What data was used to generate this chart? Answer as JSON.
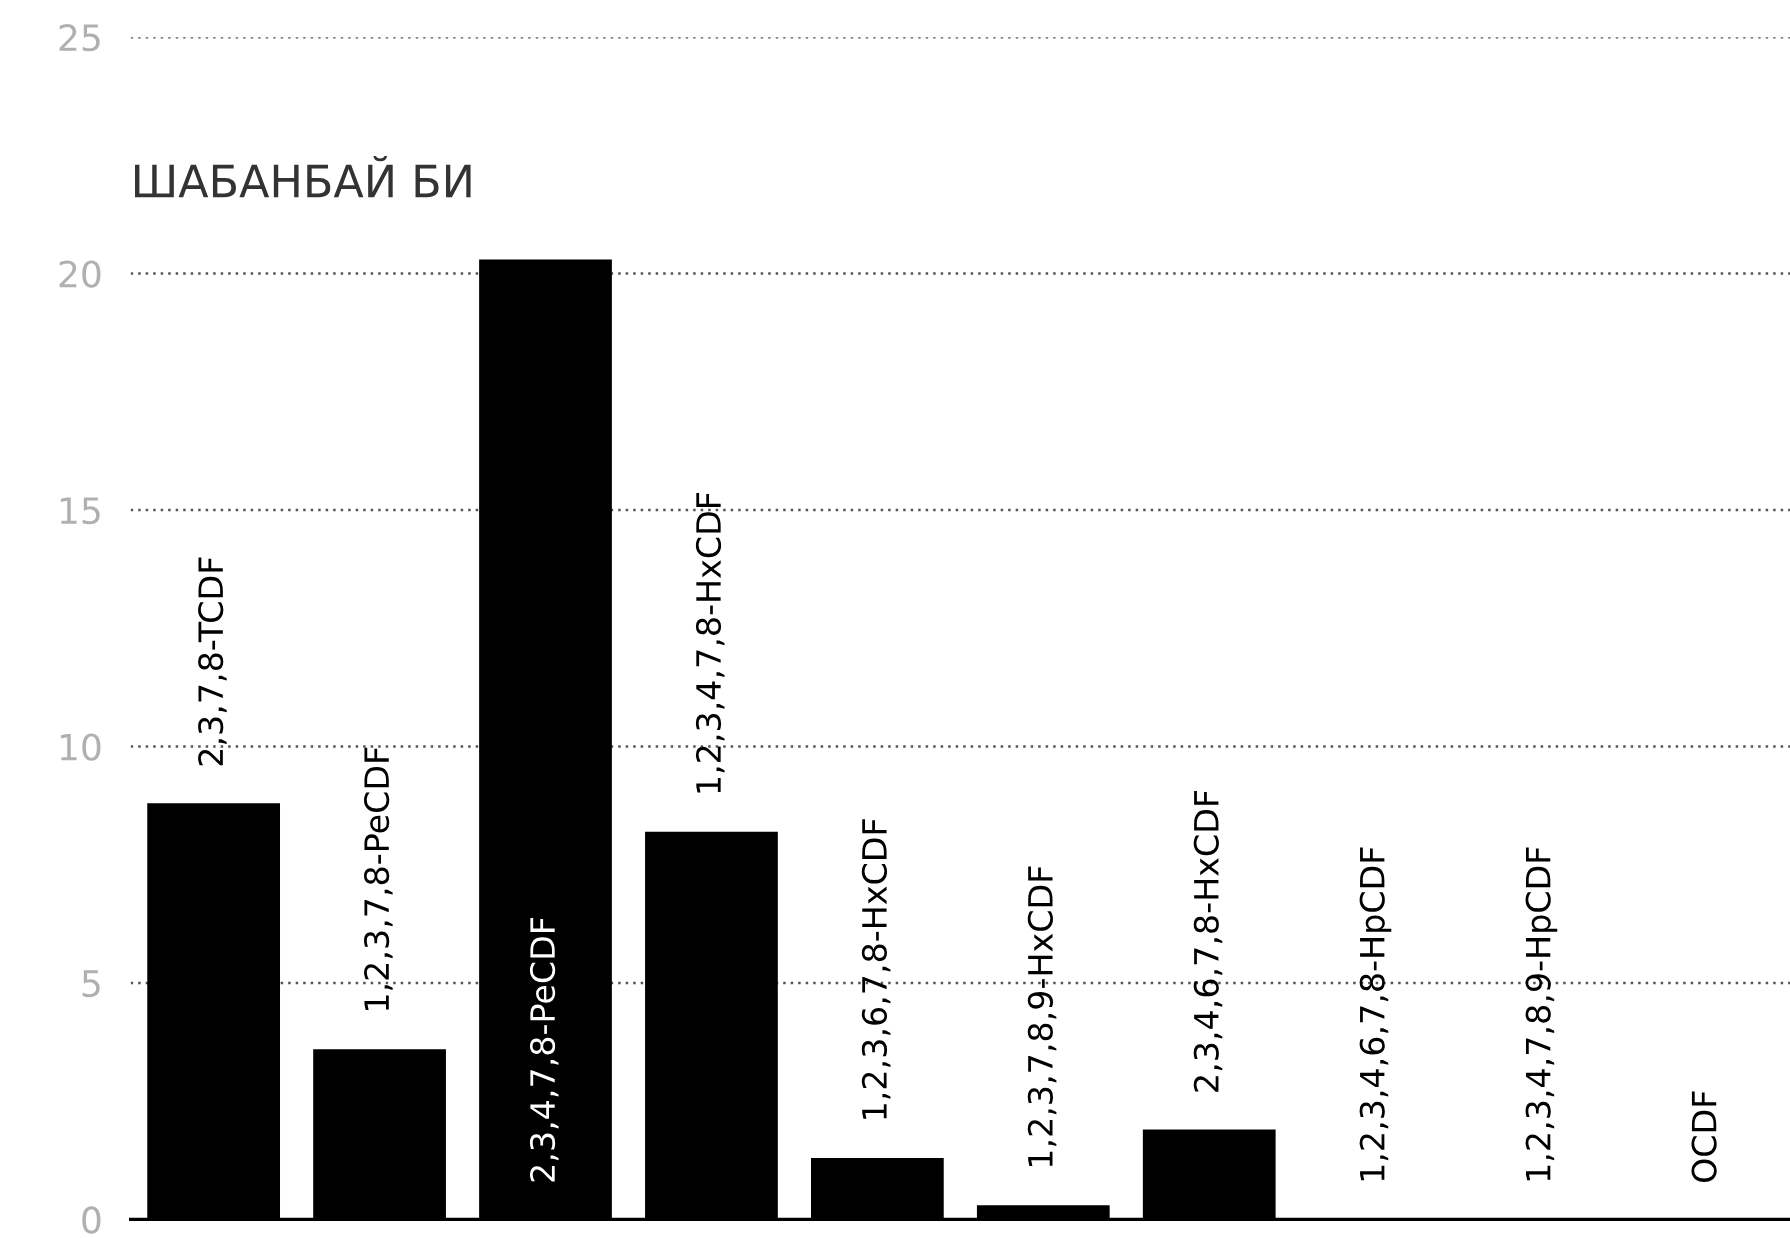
{
  "chart_data": {
    "type": "bar",
    "title": "ШАБАНБАЙ БИ",
    "categories": [
      "2,3,7,8-TCDF",
      "1,2,3,7,8-PeCDF",
      "2,3,4,7,8-PeCDF",
      "1,2,3,4,7,8-HxCDF",
      "1,2,3,6,7,8-HxCDF",
      "1,2,3,7,8,9-HxCDF",
      "2,3,4,6,7,8-HxCDF",
      "1,2,3,4,6,7,8-HpCDF",
      "1,2,3,4,7,8,9-HpCDF",
      "OCDF"
    ],
    "values": [
      8.8,
      3.6,
      20.3,
      8.2,
      1.3,
      0.3,
      1.9,
      0,
      0,
      0
    ],
    "color": "#000000",
    "ylim": [
      0,
      25
    ],
    "yticks": [
      0,
      5,
      10,
      15,
      20,
      25
    ],
    "grid": "y"
  }
}
